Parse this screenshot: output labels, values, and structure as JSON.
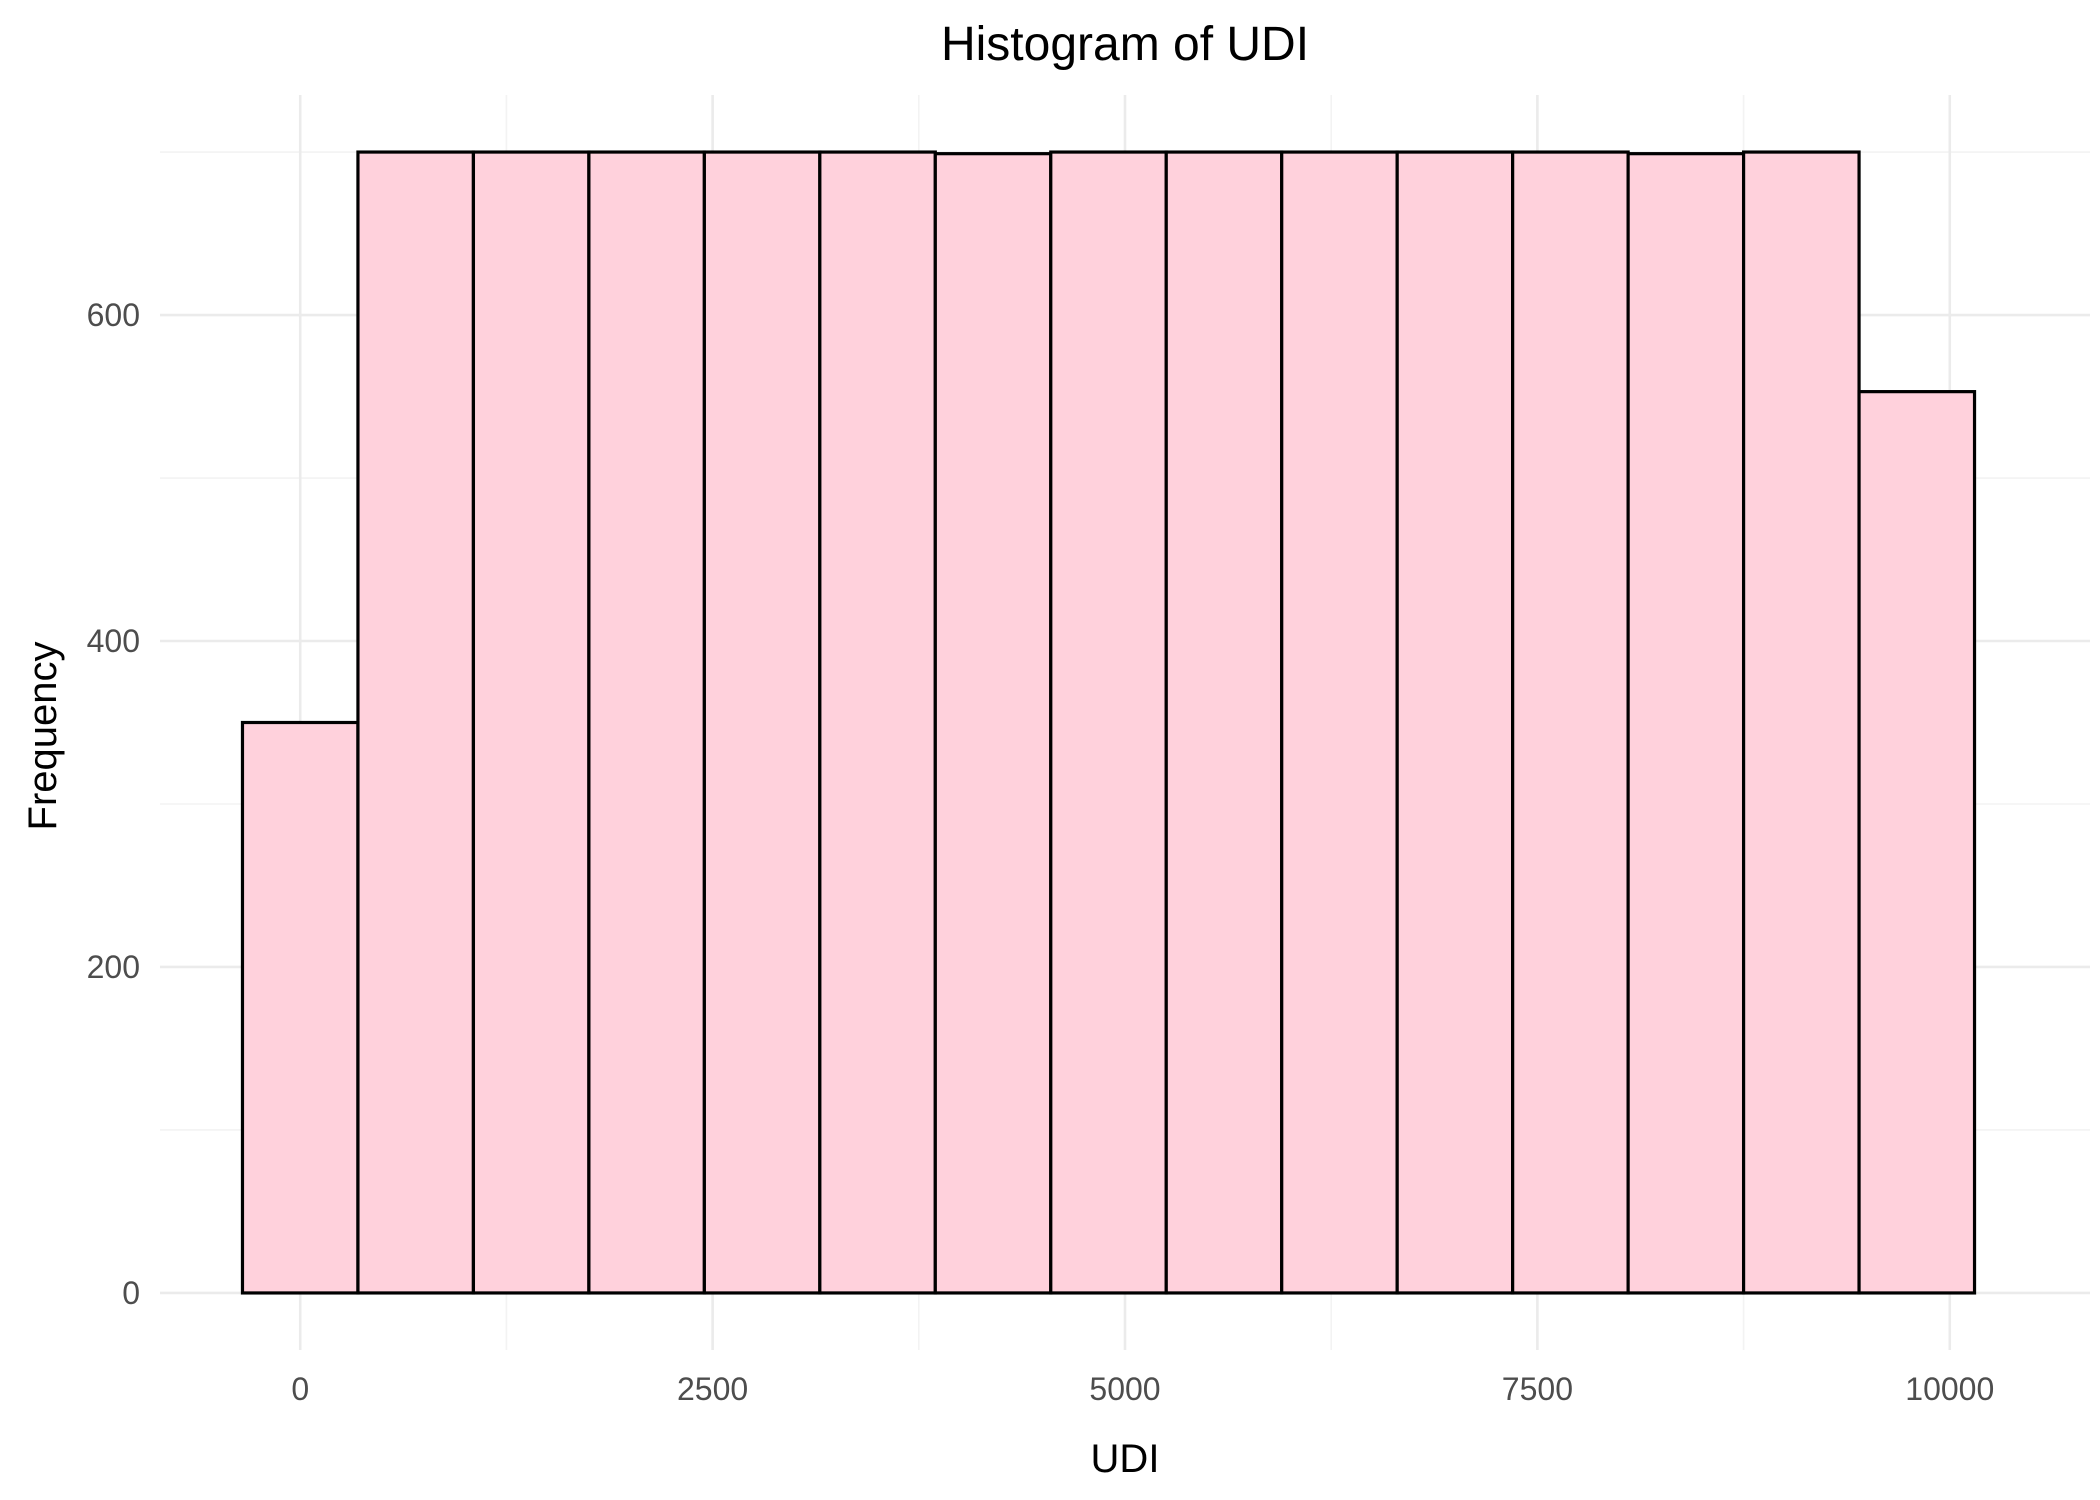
{
  "chart_data": {
    "type": "bar",
    "title": "Histogram of UDI",
    "xlabel": "UDI",
    "ylabel": "Frequency",
    "xlim": [
      -850,
      10850
    ],
    "ylim": [
      -35,
      735
    ],
    "x_ticks": [
      0,
      2500,
      5000,
      7500,
      10000
    ],
    "x_tick_labels": [
      "0",
      "2500",
      "5000",
      "7500",
      "10000"
    ],
    "x_minor_ticks": [
      1250,
      3750,
      6250,
      8750
    ],
    "y_ticks": [
      0,
      200,
      400,
      600
    ],
    "y_tick_labels": [
      "0",
      "200",
      "400",
      "600"
    ],
    "y_minor_ticks": [
      100,
      300,
      500,
      700
    ],
    "grid": true,
    "bin_width": 700,
    "bins": [
      {
        "start": -350,
        "end": 350,
        "count": 350
      },
      {
        "start": 350,
        "end": 1050,
        "count": 700
      },
      {
        "start": 1050,
        "end": 1750,
        "count": 700
      },
      {
        "start": 1750,
        "end": 2450,
        "count": 700
      },
      {
        "start": 2450,
        "end": 3150,
        "count": 700
      },
      {
        "start": 3150,
        "end": 3850,
        "count": 700
      },
      {
        "start": 3850,
        "end": 4550,
        "count": 699
      },
      {
        "start": 4550,
        "end": 5250,
        "count": 700
      },
      {
        "start": 5250,
        "end": 5950,
        "count": 700
      },
      {
        "start": 5950,
        "end": 6650,
        "count": 700
      },
      {
        "start": 6650,
        "end": 7350,
        "count": 700
      },
      {
        "start": 7350,
        "end": 8050,
        "count": 700
      },
      {
        "start": 8050,
        "end": 8750,
        "count": 699
      },
      {
        "start": 8750,
        "end": 9450,
        "count": 700
      },
      {
        "start": 9450,
        "end": 10150,
        "count": 553
      }
    ],
    "colors": {
      "fill": "#ffd1dc",
      "outline": "#000000",
      "grid": "#ebebeb"
    }
  }
}
